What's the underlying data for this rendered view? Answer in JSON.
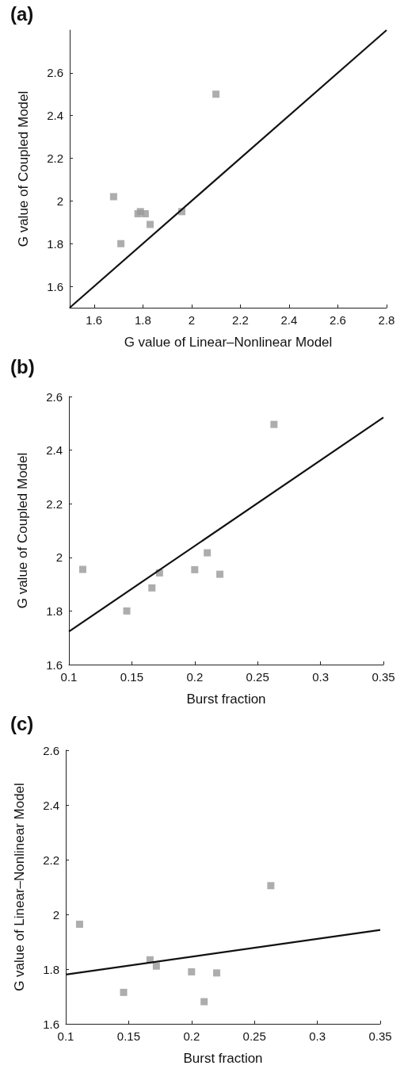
{
  "chart_data": [
    {
      "type": "scatter",
      "title": "(a)",
      "xlabel": "G value of Linear–Nonlinear Model",
      "ylabel": "G value of Coupled Model",
      "xlim": [
        1.5,
        2.8
      ],
      "xticks": [
        1.6,
        1.8,
        2,
        2.2,
        2.4,
        2.6,
        2.8
      ],
      "ylim": [
        1.5,
        2.8
      ],
      "yticks": [
        1.6,
        1.8,
        2,
        2.2,
        2.4,
        2.6
      ],
      "marker": "square",
      "series": [
        {
          "color": "#999999",
          "x": [
            2.1,
            1.68,
            1.79,
            1.78,
            1.81,
            1.83,
            1.71,
            1.96
          ],
          "values": [
            2.5,
            2.02,
            1.95,
            1.94,
            1.94,
            1.89,
            1.8,
            1.95
          ]
        },
        {
          "type": "line",
          "color": "#111111",
          "marker": "none",
          "line_style": "solid",
          "x": [
            1.5,
            2.8
          ],
          "values": [
            1.5,
            2.8
          ]
        }
      ]
    },
    {
      "type": "scatter",
      "title": "(b)",
      "xlabel": "Burst fraction",
      "ylabel": "G value of Coupled Model",
      "xlim": [
        0.1,
        0.35
      ],
      "xticks": [
        0.1,
        0.15,
        0.2,
        0.25,
        0.3,
        0.35
      ],
      "ylim": [
        1.6,
        2.6
      ],
      "yticks": [
        1.6,
        1.8,
        2,
        2.2,
        2.4,
        2.6
      ],
      "marker": "square",
      "series": [
        {
          "color": "#999999",
          "x": [
            0.111,
            0.146,
            0.166,
            0.172,
            0.2,
            0.21,
            0.22,
            0.263
          ],
          "values": [
            1.955,
            1.8,
            1.886,
            1.942,
            1.954,
            2.017,
            1.937,
            2.496
          ]
        },
        {
          "type": "line",
          "color": "#111111",
          "marker": "none",
          "line_style": "solid",
          "x": [
            0.1,
            0.35
          ],
          "values": [
            1.723,
            2.522
          ]
        }
      ]
    },
    {
      "type": "scatter",
      "title": "(c)",
      "xlabel": "Burst fraction",
      "ylabel": "G value of Linear–Nonlinear Model",
      "xlim": [
        0.1,
        0.35
      ],
      "xticks": [
        0.1,
        0.15,
        0.2,
        0.25,
        0.3,
        0.35
      ],
      "ylim": [
        1.6,
        2.6
      ],
      "yticks": [
        1.6,
        1.8,
        2,
        2.2,
        2.4,
        2.6
      ],
      "marker": "square",
      "series": [
        {
          "color": "#999999",
          "x": [
            0.111,
            0.146,
            0.167,
            0.172,
            0.2,
            0.21,
            0.22,
            0.263
          ],
          "values": [
            1.964,
            1.715,
            1.834,
            1.811,
            1.79,
            1.681,
            1.786,
            2.105
          ]
        },
        {
          "type": "line",
          "color": "#111111",
          "marker": "none",
          "line_style": "solid",
          "x": [
            0.1,
            0.35
          ],
          "values": [
            1.78,
            1.943
          ]
        }
      ]
    }
  ]
}
